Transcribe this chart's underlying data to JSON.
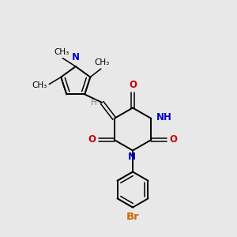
{
  "background_color": "#e8e8e8",
  "bond_color": "#000000",
  "n_color": "#0000cc",
  "o_color": "#cc0000",
  "br_color": "#cc6600",
  "h_color": "#808080",
  "figsize": [
    3.0,
    3.0
  ],
  "dpi": 100,
  "xlim": [
    0,
    10
  ],
  "ylim": [
    0,
    10
  ],
  "lw": 1.4,
  "lw_double": 1.1,
  "fs": 8.5,
  "fs_small": 7.5
}
